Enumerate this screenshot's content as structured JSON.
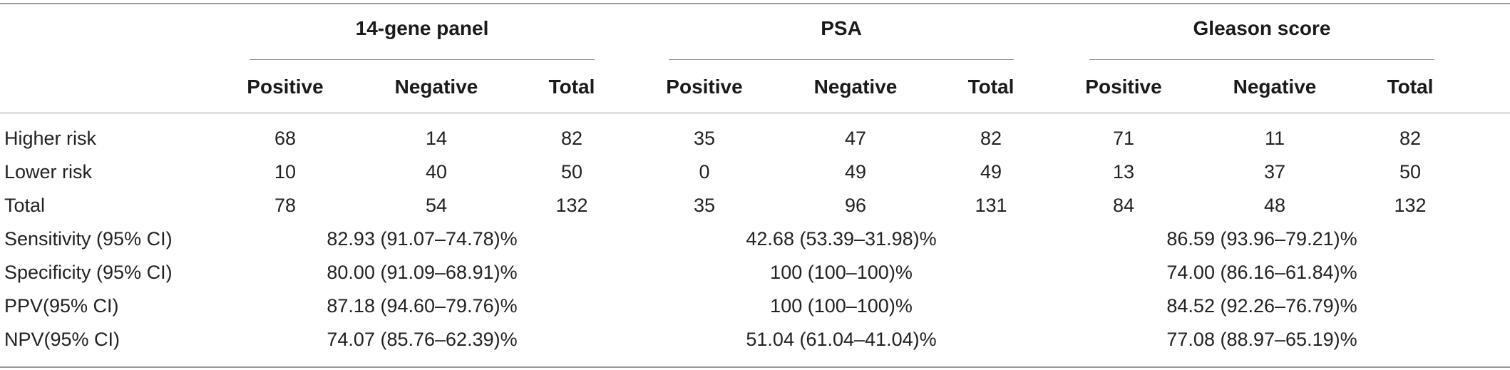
{
  "table": {
    "groups": [
      {
        "label": "14-gene panel"
      },
      {
        "label": "PSA"
      },
      {
        "label": "Gleason score"
      }
    ],
    "subheaders": [
      "Positive",
      "Negative",
      "Total"
    ],
    "count_rows": [
      {
        "label": "Higher risk",
        "values": [
          "68",
          "14",
          "82",
          "35",
          "47",
          "82",
          "71",
          "11",
          "82"
        ]
      },
      {
        "label": "Lower risk",
        "values": [
          "10",
          "40",
          "50",
          "0",
          "49",
          "49",
          "13",
          "37",
          "50"
        ]
      },
      {
        "label": "Total",
        "values": [
          "78",
          "54",
          "132",
          "35",
          "96",
          "131",
          "84",
          "48",
          "132"
        ]
      }
    ],
    "metric_rows": [
      {
        "label": "Sensitivity (95% CI)",
        "values": [
          "82.93 (91.07–74.78)%",
          "42.68 (53.39–31.98)%",
          "86.59 (93.96–79.21)%"
        ]
      },
      {
        "label": "Specificity (95% CI)",
        "values": [
          "80.00 (91.09–68.91)%",
          "100 (100–100)%",
          "74.00 (86.16–61.84)%"
        ]
      },
      {
        "label": "PPV(95% CI)",
        "values": [
          "87.18 (94.60–79.76)%",
          "100 (100–100)%",
          "84.52 (92.26–76.79)%"
        ]
      },
      {
        "label": "NPV(95% CI)",
        "values": [
          "74.07 (85.76–62.39)%",
          "51.04 (61.04–41.04)%",
          "77.08 (88.97–65.19)%"
        ]
      }
    ]
  }
}
